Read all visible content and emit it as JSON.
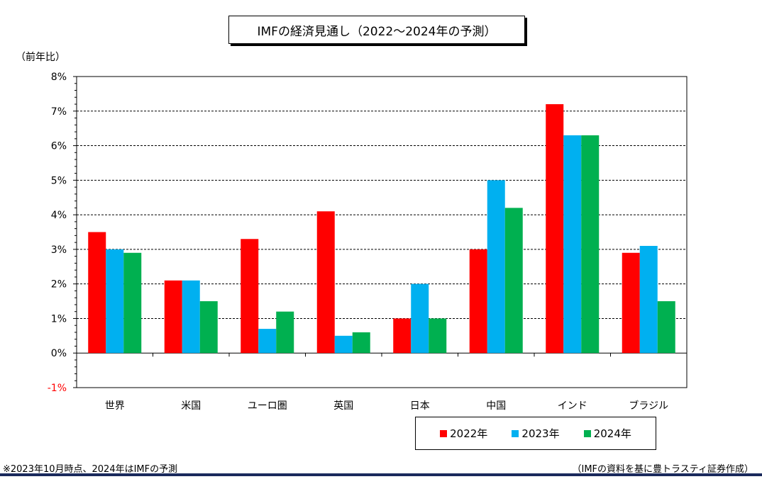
{
  "title": "IMFの経済見通し（2022～2024年の予測）",
  "unit_label": "（前年比）",
  "footnote": "※2023年10月時点、2024年はIMFの予測",
  "source": "（IMFの資料を基に豊トラスティ証券作成）",
  "colors": {
    "s2022": "#ff0000",
    "s2023": "#00b0f0",
    "s2024": "#00b050",
    "negative_tick": "#ff0000"
  },
  "chart_data": {
    "type": "bar",
    "title": "IMFの経済見通し（2022～2024年の予測）",
    "ylabel": "（前年比）",
    "ylim": [
      -1,
      8
    ],
    "yticks": [
      "-1%",
      "0%",
      "1%",
      "2%",
      "3%",
      "4%",
      "5%",
      "6%",
      "7%",
      "8%"
    ],
    "grid": true,
    "legend_position": "bottom-right",
    "categories": [
      "世界",
      "米国",
      "ユーロ圏",
      "英国",
      "日本",
      "中国",
      "インド",
      "ブラジル"
    ],
    "series": [
      {
        "name": "2022年",
        "color": "#ff0000",
        "values": [
          3.5,
          2.1,
          3.3,
          4.1,
          1.0,
          3.0,
          7.2,
          2.9
        ]
      },
      {
        "name": "2023年",
        "color": "#00b0f0",
        "values": [
          3.0,
          2.1,
          0.7,
          0.5,
          2.0,
          5.0,
          6.3,
          3.1
        ]
      },
      {
        "name": "2024年",
        "color": "#00b050",
        "values": [
          2.9,
          1.5,
          1.2,
          0.6,
          1.0,
          4.2,
          6.3,
          1.5
        ]
      }
    ]
  }
}
